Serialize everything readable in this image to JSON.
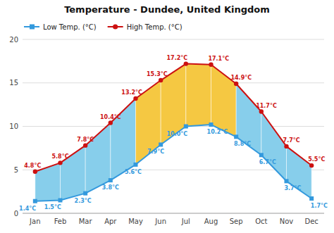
{
  "chart_data": {
    "type": "line",
    "title": "Temperature - Dundee, United Kingdom",
    "categories": [
      "Jan",
      "Feb",
      "Mar",
      "Apr",
      "May",
      "Jun",
      "Jul",
      "Aug",
      "Sep",
      "Oct",
      "Nov",
      "Dec"
    ],
    "series": [
      {
        "name": "Low Temp. (°C)",
        "color": "#3399dd",
        "marker": "square",
        "values": [
          1.4,
          1.5,
          2.3,
          3.8,
          5.6,
          7.9,
          10.0,
          10.2,
          8.8,
          6.7,
          3.7,
          1.7
        ],
        "value_labels": [
          "1.4°C",
          "1.5°C",
          "2.3°C",
          "3.8°C",
          "5.6°C",
          "7.9°C",
          "10.0°C",
          "10.2°C",
          "8.8°C",
          "6.7°C",
          "3.7°C",
          "1.7°C"
        ]
      },
      {
        "name": "High Temp. (°C)",
        "color": "#cc1111",
        "marker": "circle",
        "values": [
          4.8,
          5.8,
          7.8,
          10.4,
          13.2,
          15.3,
          17.2,
          17.1,
          14.9,
          11.7,
          7.7,
          5.5
        ],
        "value_labels": [
          "4.8°C",
          "5.8°C",
          "7.8°C",
          "10.4°C",
          "13.2°C",
          "15.3°C",
          "17.2°C",
          "17.1°C",
          "14.9°C",
          "11.7°C",
          "7.7°C",
          "5.5°C"
        ]
      }
    ],
    "colors": [
      "#87ceeb",
      "#87ceeb",
      "#87ceeb",
      "#87ceeb",
      "#f5c842",
      "#f5c842",
      "#f5c842",
      "#f5c842",
      "#87ceeb",
      "#87ceeb",
      "#87ceeb"
    ],
    "ylim": [
      0,
      20
    ],
    "yticks": [
      0,
      5,
      10,
      15,
      20
    ],
    "grid": true,
    "legend": "upper left",
    "data_labels": true
  }
}
